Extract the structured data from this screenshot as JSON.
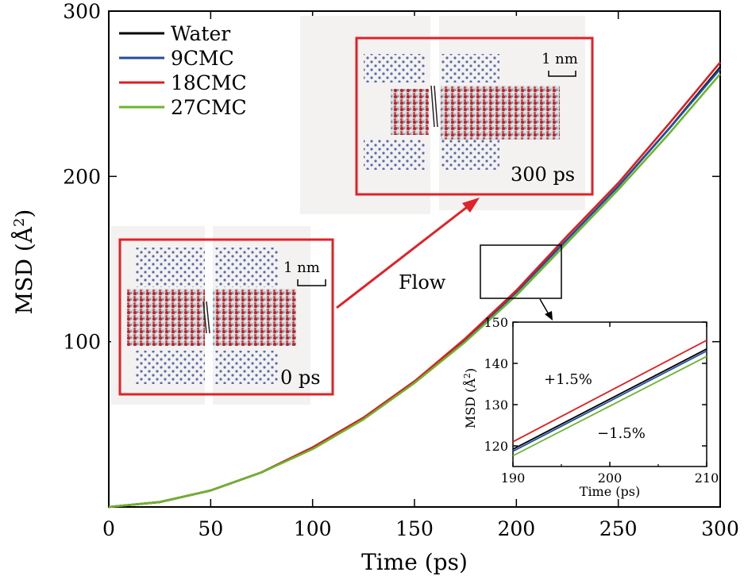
{
  "chart_data": [
    {
      "type": "line",
      "xlabel": "Time (ps)",
      "ylabel": "MSD (Å²)",
      "ylabel_main": "MSD (Å",
      "ylabel_sup": "2",
      "ylabel_close": ")",
      "xlim": [
        0,
        300
      ],
      "ylim": [
        0,
        300
      ],
      "xticks": [
        0,
        50,
        100,
        150,
        200,
        250,
        300
      ],
      "yticks": [
        100,
        200,
        300
      ],
      "legend_position": "top-left",
      "x": [
        0,
        25,
        50,
        75,
        100,
        125,
        150,
        175,
        200,
        225,
        250,
        275,
        300
      ],
      "series": [
        {
          "name": "Water",
          "color": "#000000",
          "values": [
            0,
            3,
            10,
            21,
            36,
            54,
            76,
            101,
            130,
            162,
            194,
            229,
            266
          ]
        },
        {
          "name": "9CMC",
          "color": "#1f4e9e",
          "values": [
            0,
            3,
            10,
            21,
            36,
            54,
            76,
            101,
            130,
            162,
            194,
            229,
            265
          ]
        },
        {
          "name": "18CMC",
          "color": "#e41a1c",
          "values": [
            0,
            3,
            10,
            21,
            36,
            54,
            76,
            102,
            131,
            164,
            196,
            232,
            269
          ]
        },
        {
          "name": "27CMC",
          "color": "#6bb52d",
          "values": [
            0,
            3,
            10,
            21,
            35,
            53,
            75,
            100,
            128,
            160,
            192,
            226,
            262
          ]
        }
      ]
    },
    {
      "type": "line",
      "role": "inset",
      "xlabel": "Time (ps)",
      "ylabel": "MSD (Å²)",
      "ylabel_main": "MSD (Å",
      "ylabel_sup": "2",
      "ylabel_close": ")",
      "xlim": [
        190,
        210
      ],
      "ylim": [
        115,
        150
      ],
      "xticks": [
        190,
        200,
        210
      ],
      "yticks": [
        120,
        130,
        140,
        150
      ],
      "x": [
        190,
        210
      ],
      "series": [
        {
          "name": "Water",
          "color": "#000000",
          "values": [
            119.2,
            143.5
          ]
        },
        {
          "name": "9CMC",
          "color": "#1f4e9e",
          "values": [
            118.7,
            143.0
          ]
        },
        {
          "name": "18CMC",
          "color": "#e41a1c",
          "values": [
            121.0,
            145.6
          ]
        },
        {
          "name": "27CMC",
          "color": "#6bb52d",
          "values": [
            117.6,
            141.7
          ]
        }
      ],
      "annotations": [
        "+1.5%",
        "−1.5%"
      ]
    }
  ],
  "annotations": {
    "flow": "Flow",
    "snapshot_start_time": "0 ps",
    "snapshot_end_time": "300 ps",
    "scale_bar_start": "1 nm",
    "scale_bar_end": "1 nm"
  }
}
